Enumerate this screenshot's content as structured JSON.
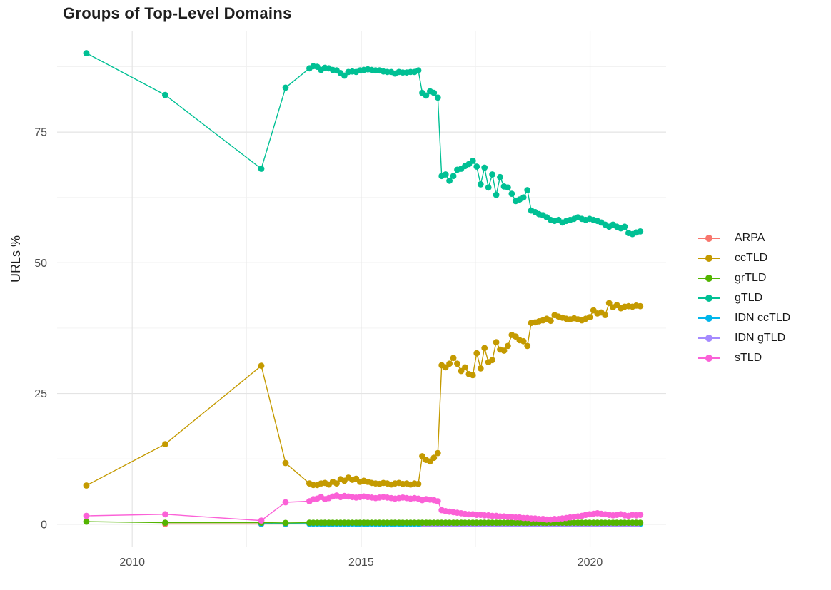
{
  "chart_data": {
    "type": "line",
    "title": "Groups of Top-Level Domains",
    "xlabel": "",
    "ylabel": "URLs %",
    "x_ticks": [
      2010,
      2015,
      2020
    ],
    "y_ticks": [
      0,
      25,
      50,
      75
    ],
    "x_minor": [
      2012.5,
      2017.5
    ],
    "y_minor": [
      12.5,
      37.5,
      62.5,
      87.5
    ],
    "xlim": [
      2008.36,
      2021.66
    ],
    "ylim": [
      -4.4,
      94.4
    ],
    "grid": true,
    "background": "#FFFFFF",
    "grid_major_color": "#E4E4E4",
    "grid_minor_color": "#F0F0F0",
    "tick_label_color": "#4D4D4D",
    "text_color": "#1F1F1F",
    "legend_position": "right",
    "legend_title": null,
    "series": [
      {
        "name": "ARPA",
        "color": "#F8766D",
        "points": [
          [
            2010.72,
            0.05
          ],
          [
            2012.82,
            0.05
          ],
          [
            2013.35,
            0.05
          ]
        ]
      },
      {
        "name": "ccTLD",
        "color": "#C49A00",
        "points": [
          [
            2009.0,
            7.4
          ],
          [
            2010.72,
            15.3
          ],
          [
            2012.82,
            30.3
          ],
          [
            2013.35,
            11.7
          ]
        ],
        "monthly": {
          "start": 2013.87,
          "step": 0.085,
          "values": [
            7.8,
            7.5,
            7.5,
            7.8,
            7.9,
            7.6,
            8.1,
            7.8,
            8.6,
            8.3,
            8.9,
            8.5,
            8.7,
            8.1,
            8.3,
            8.1,
            7.9,
            7.8,
            7.7,
            7.9,
            7.8,
            7.6,
            7.8,
            7.9,
            7.7,
            7.8,
            7.6,
            7.8,
            7.7,
            13.0,
            12.3,
            12.0,
            12.7,
            13.6,
            30.4,
            30.0,
            30.7,
            31.8,
            30.7,
            29.3,
            30.0,
            28.7,
            28.5,
            32.7,
            29.8,
            33.7,
            31.0,
            31.4,
            34.8,
            33.4,
            33.2,
            34.1,
            36.2,
            35.9,
            35.2,
            35.0,
            34.1,
            38.5,
            38.6,
            38.8,
            39.0,
            39.3,
            38.9,
            40.0,
            39.7,
            39.5,
            39.3,
            39.2,
            39.4,
            39.2,
            39.0,
            39.3,
            39.6,
            40.9,
            40.3,
            40.5,
            40.0,
            42.3,
            41.5,
            41.9,
            41.3,
            41.6,
            41.7,
            41.6,
            41.8,
            41.7
          ]
        }
      },
      {
        "name": "grTLD",
        "color": "#53B400",
        "points": [
          [
            2009.0,
            0.5
          ],
          [
            2010.72,
            0.3
          ],
          [
            2012.82,
            0.3
          ],
          [
            2013.35,
            0.25
          ]
        ],
        "monthly": {
          "start": 2013.87,
          "step": 0.085,
          "count": 86,
          "value": 0.3
        }
      },
      {
        "name": "gTLD",
        "color": "#00C094",
        "points": [
          [
            2009.0,
            90.1
          ],
          [
            2010.72,
            82.1
          ],
          [
            2012.82,
            68.0
          ],
          [
            2013.35,
            83.5
          ]
        ],
        "monthly": {
          "start": 2013.87,
          "step": 0.085,
          "values": [
            87.2,
            87.6,
            87.5,
            86.9,
            87.3,
            87.2,
            86.9,
            86.8,
            86.3,
            85.8,
            86.5,
            86.6,
            86.5,
            86.8,
            86.9,
            87.0,
            86.9,
            86.8,
            86.8,
            86.6,
            86.5,
            86.5,
            86.2,
            86.5,
            86.4,
            86.4,
            86.5,
            86.5,
            86.8,
            82.5,
            82.0,
            82.8,
            82.5,
            81.6,
            66.6,
            66.9,
            65.7,
            66.6,
            67.8,
            68.0,
            68.5,
            68.9,
            69.5,
            68.4,
            65.0,
            68.2,
            64.4,
            66.9,
            63.0,
            66.4,
            64.6,
            64.4,
            63.2,
            61.8,
            62.1,
            62.5,
            63.9,
            60.0,
            59.7,
            59.3,
            59.1,
            58.7,
            58.2,
            58.0,
            58.2,
            57.7,
            58.0,
            58.2,
            58.4,
            58.7,
            58.4,
            58.2,
            58.4,
            58.2,
            58.0,
            57.7,
            57.3,
            56.9,
            57.3,
            56.9,
            56.6,
            56.9,
            55.7,
            55.5,
            55.8,
            56.0
          ]
        }
      },
      {
        "name": "IDN ccTLD",
        "color": "#00B6EB",
        "points": [
          [
            2012.82,
            0.1
          ],
          [
            2013.35,
            0.1
          ]
        ],
        "monthly": {
          "start": 2013.87,
          "step": 0.085,
          "count": 86,
          "value": 0.1
        }
      },
      {
        "name": "IDN gTLD",
        "color": "#A58AFF",
        "points": [],
        "monthly": {
          "start": 2016.36,
          "step": 0.085,
          "count": 56,
          "value": 0.05
        }
      },
      {
        "name": "sTLD",
        "color": "#FB61D7",
        "points": [
          [
            2009.0,
            1.6
          ],
          [
            2010.72,
            1.9
          ],
          [
            2012.82,
            0.7
          ],
          [
            2013.35,
            4.2
          ]
        ],
        "monthly": {
          "start": 2013.87,
          "step": 0.085,
          "values": [
            4.4,
            4.8,
            4.9,
            5.2,
            4.8,
            5.0,
            5.3,
            5.5,
            5.2,
            5.4,
            5.3,
            5.2,
            5.1,
            5.2,
            5.3,
            5.2,
            5.1,
            5.0,
            5.1,
            5.2,
            5.1,
            5.0,
            4.9,
            5.0,
            5.1,
            5.0,
            4.9,
            5.0,
            4.9,
            4.6,
            4.8,
            4.7,
            4.6,
            4.4,
            2.7,
            2.5,
            2.4,
            2.3,
            2.2,
            2.1,
            2.0,
            1.9,
            1.9,
            1.8,
            1.8,
            1.7,
            1.7,
            1.6,
            1.6,
            1.5,
            1.5,
            1.4,
            1.4,
            1.3,
            1.3,
            1.2,
            1.2,
            1.1,
            1.1,
            1.0,
            1.0,
            0.9,
            0.9,
            1.0,
            1.0,
            1.1,
            1.2,
            1.3,
            1.4,
            1.5,
            1.6,
            1.8,
            1.9,
            2.0,
            2.1,
            2.0,
            1.9,
            1.8,
            1.7,
            1.8,
            1.9,
            1.7,
            1.6,
            1.8,
            1.7,
            1.8
          ]
        }
      }
    ]
  }
}
